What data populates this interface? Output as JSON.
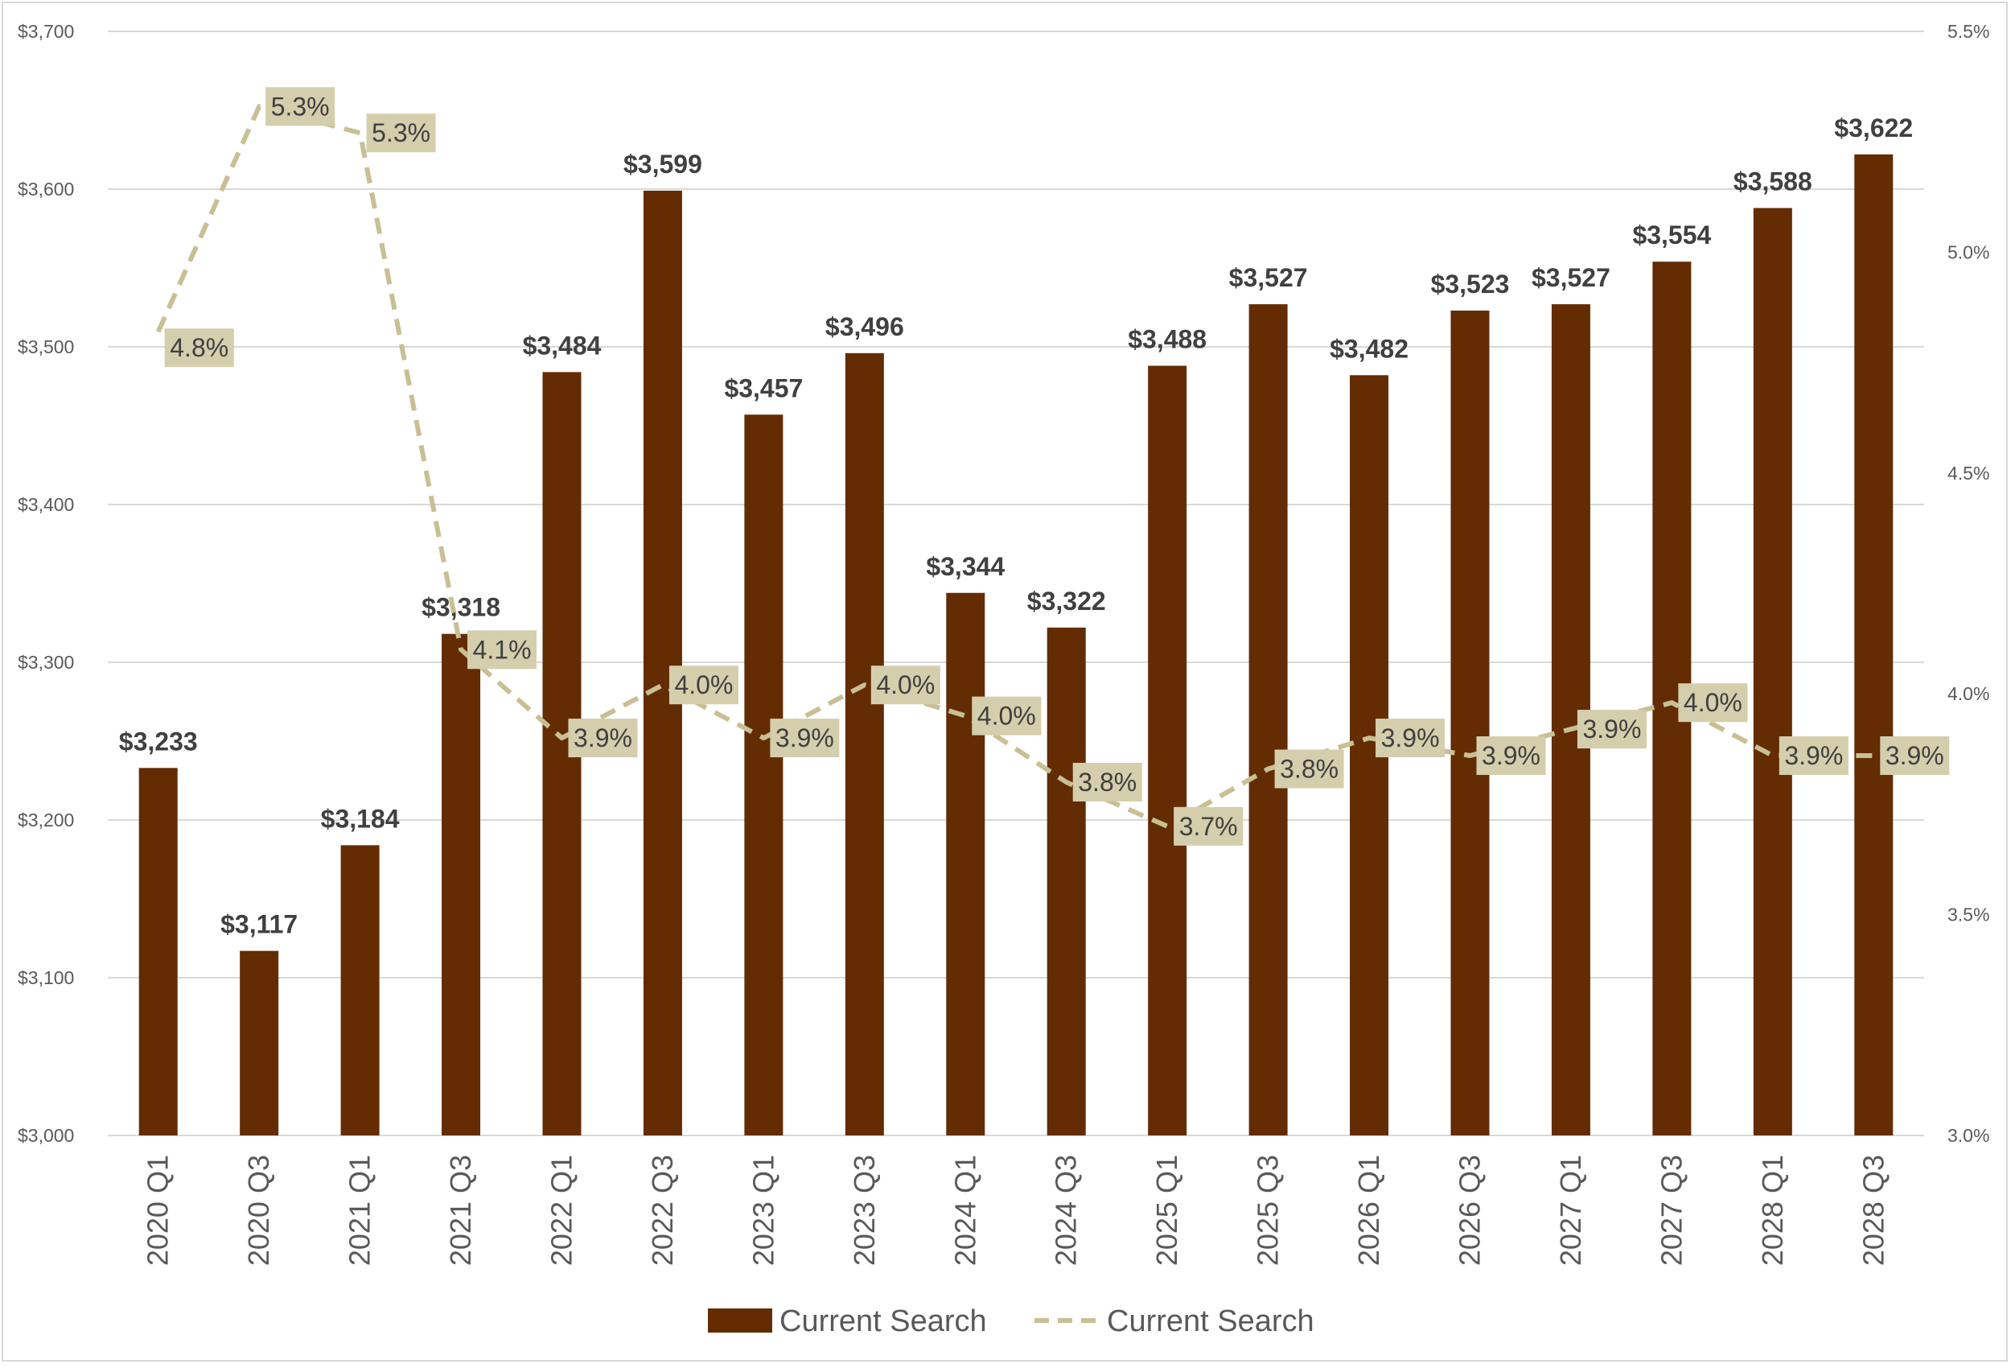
{
  "chart_data": {
    "type": "bar",
    "categories": [
      "2020 Q1",
      "2020 Q3",
      "2021 Q1",
      "2021 Q3",
      "2022 Q1",
      "2022 Q3",
      "2023 Q1",
      "2023 Q3",
      "2024 Q1",
      "2024 Q3",
      "2025 Q1",
      "2025 Q3",
      "2026 Q1",
      "2026 Q3",
      "2027 Q1",
      "2027 Q3",
      "2028 Q1",
      "2028 Q3"
    ],
    "series": [
      {
        "name": "Current Search",
        "type": "bar",
        "axis": "left",
        "color": "#632c03",
        "values": [
          3233,
          3117,
          3184,
          3318,
          3484,
          3599,
          3457,
          3496,
          3344,
          3322,
          3488,
          3527,
          3482,
          3523,
          3527,
          3554,
          3588,
          3622
        ],
        "labels": [
          "$3,233",
          "$3,117",
          "$3,184",
          "$3,318",
          "$3,484",
          "$3,599",
          "$3,457",
          "$3,496",
          "$3,344",
          "$3,322",
          "$3,488",
          "$3,527",
          "$3,482",
          "$3,523",
          "$3,527",
          "$3,554",
          "$3,588",
          "$3,622"
        ]
      },
      {
        "name": "Current Search",
        "type": "line",
        "style": "dashed",
        "axis": "right",
        "color": "#c9bf95",
        "label_box_color": "#d5ceac",
        "values": [
          4.82,
          5.33,
          5.27,
          4.1,
          3.9,
          4.02,
          3.9,
          4.02,
          3.95,
          3.8,
          3.7,
          3.83,
          3.9,
          3.86,
          3.92,
          3.98,
          3.86,
          3.86
        ],
        "labels": [
          "4.8%",
          "5.3%",
          "5.3%",
          "4.1%",
          "3.9%",
          "4.0%",
          "3.9%",
          "4.0%",
          "4.0%",
          "3.8%",
          "3.7%",
          "3.8%",
          "3.9%",
          "3.9%",
          "3.9%",
          "4.0%",
          "3.9%",
          "3.9%"
        ]
      }
    ],
    "y_left": {
      "min": 3000,
      "max": 3700,
      "step": 100,
      "tick_labels": [
        "$3,000",
        "$3,100",
        "$3,200",
        "$3,300",
        "$3,400",
        "$3,500",
        "$3,600",
        "$3,700"
      ]
    },
    "y_right": {
      "min": 3.0,
      "max": 5.5,
      "step": 0.5,
      "tick_labels": [
        "3.0%",
        "3.5%",
        "4.0%",
        "4.5%",
        "5.0%",
        "5.5%"
      ]
    },
    "grid": true,
    "legend": {
      "position": "bottom",
      "items": [
        "Current Search",
        "Current Search"
      ]
    },
    "title": "",
    "xlabel": "",
    "ylabel": ""
  }
}
